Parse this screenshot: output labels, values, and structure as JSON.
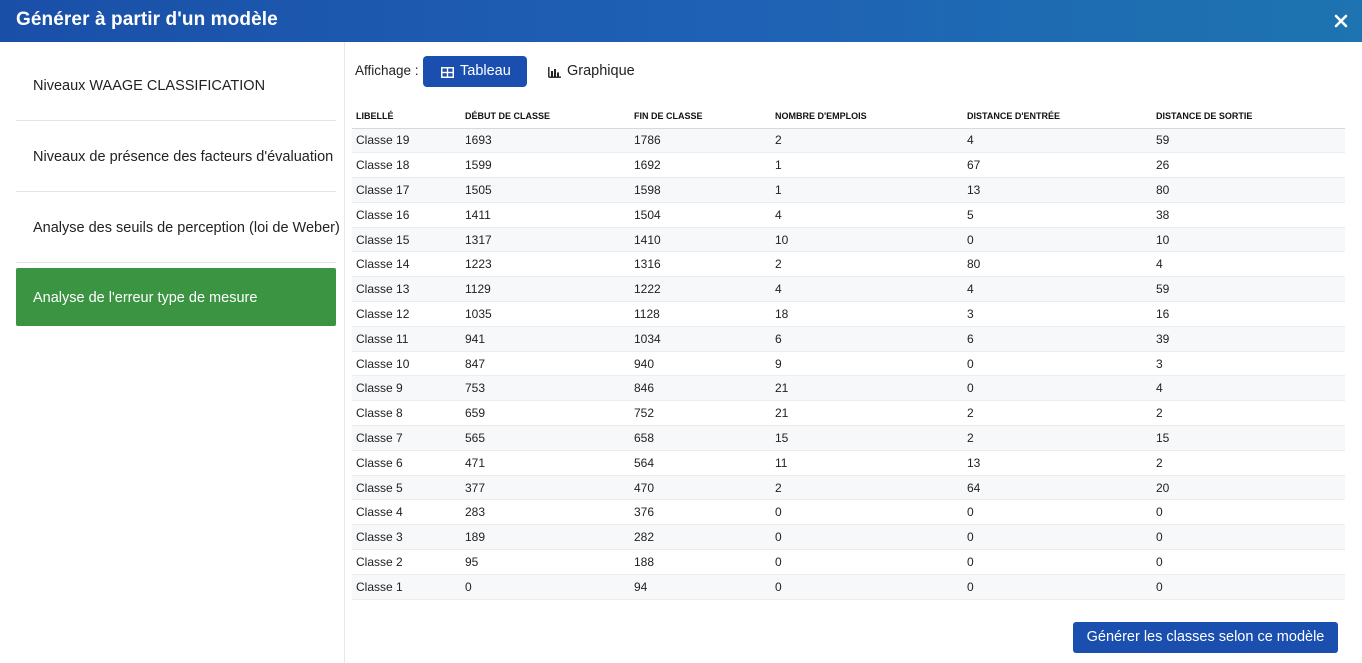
{
  "dialog": {
    "title": "Générer à partir d'un modèle"
  },
  "sidebar": {
    "items": [
      {
        "label": "Niveaux WAAGE CLASSIFICATION"
      },
      {
        "label": "Niveaux de présence des facteurs d'évaluation"
      },
      {
        "label": "Analyse des seuils de perception (loi de Weber)"
      },
      {
        "label": "Analyse de l'erreur type de mesure"
      }
    ],
    "active_color": "#3a9441"
  },
  "toolbar": {
    "label": "Affichage :",
    "tableau_label": "Tableau",
    "graphique_label": "Graphique",
    "accent": "#1a4fb0"
  },
  "table": {
    "headers": [
      "Libellé",
      "Début de classe",
      "Fin de classe",
      "Nombre d'emplois",
      "Distance d'entrée",
      "Distance de sortie"
    ],
    "rows": [
      [
        "Classe 19",
        "1693",
        "1786",
        "2",
        "4",
        "59"
      ],
      [
        "Classe 18",
        "1599",
        "1692",
        "1",
        "67",
        "26"
      ],
      [
        "Classe 17",
        "1505",
        "1598",
        "1",
        "13",
        "80"
      ],
      [
        "Classe 16",
        "1411",
        "1504",
        "4",
        "5",
        "38"
      ],
      [
        "Classe 15",
        "1317",
        "1410",
        "10",
        "0",
        "10"
      ],
      [
        "Classe 14",
        "1223",
        "1316",
        "2",
        "80",
        "4"
      ],
      [
        "Classe 13",
        "1129",
        "1222",
        "4",
        "4",
        "59"
      ],
      [
        "Classe 12",
        "1035",
        "1128",
        "18",
        "3",
        "16"
      ],
      [
        "Classe 11",
        "941",
        "1034",
        "6",
        "6",
        "39"
      ],
      [
        "Classe 10",
        "847",
        "940",
        "9",
        "0",
        "3"
      ],
      [
        "Classe 9",
        "753",
        "846",
        "21",
        "0",
        "4"
      ],
      [
        "Classe 8",
        "659",
        "752",
        "21",
        "2",
        "2"
      ],
      [
        "Classe 7",
        "565",
        "658",
        "15",
        "2",
        "15"
      ],
      [
        "Classe 6",
        "471",
        "564",
        "11",
        "13",
        "2"
      ],
      [
        "Classe 5",
        "377",
        "470",
        "2",
        "64",
        "20"
      ],
      [
        "Classe 4",
        "283",
        "376",
        "0",
        "0",
        "0"
      ],
      [
        "Classe 3",
        "189",
        "282",
        "0",
        "0",
        "0"
      ],
      [
        "Classe 2",
        "95",
        "188",
        "0",
        "0",
        "0"
      ],
      [
        "Classe 1",
        "0",
        "94",
        "0",
        "0",
        "0"
      ]
    ]
  },
  "footer": {
    "generate_label": "Générer les classes selon ce modèle"
  }
}
